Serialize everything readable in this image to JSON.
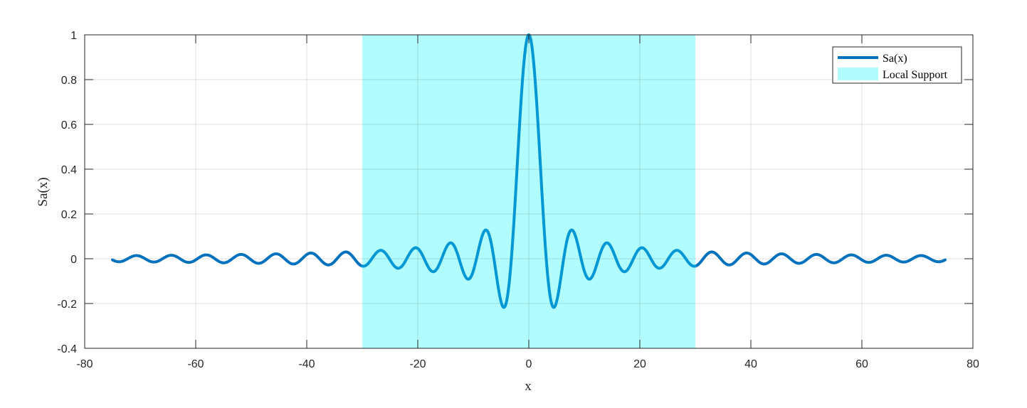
{
  "chart_data": {
    "type": "line",
    "xlabel": "x",
    "ylabel": "Sa(x)",
    "xlim": [
      -80,
      80
    ],
    "ylim": [
      -0.4,
      1
    ],
    "x_ticks": [
      -80,
      -60,
      -40,
      -20,
      0,
      20,
      40,
      60,
      80
    ],
    "y_ticks": [
      -0.4,
      -0.2,
      0,
      0.2,
      0.4,
      0.6,
      0.8,
      1
    ],
    "x_tick_labels": [
      "-80",
      "-60",
      "-40",
      "-20",
      "0",
      "20",
      "40",
      "60",
      "80"
    ],
    "y_tick_labels": [
      "-0.4",
      "-0.2",
      "0",
      "0.2",
      "0.4",
      "0.6",
      "0.8",
      "1"
    ],
    "grid": true,
    "legend_position": "top-right",
    "series": [
      {
        "name": "Sa(x)",
        "function": "sin(x)/x",
        "x_range": [
          -75,
          75
        ],
        "color": "#0072BD",
        "color_inside_support": "#0097D4"
      }
    ],
    "regions": [
      {
        "name": "Local Support",
        "x_range": [
          -30,
          30
        ],
        "color": "#B1FCFD"
      }
    ],
    "legend": {
      "entries": [
        "Sa(x)",
        "Local Support"
      ]
    }
  }
}
